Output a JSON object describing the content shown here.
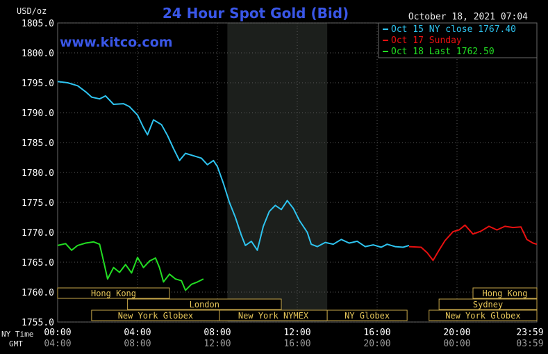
{
  "chart_data": {
    "type": "line",
    "title": "24 Hour Spot Gold (Bid)",
    "ylabel": "USD/oz",
    "website": "www.kitco.com",
    "timestamp": "October 18, 2021 07:04",
    "ylim": [
      1755,
      1805
    ],
    "y_ticks": [
      "1805.0",
      "1800.0",
      "1795.0",
      "1790.0",
      "1785.0",
      "1780.0",
      "1775.0",
      "1770.0",
      "1765.0",
      "1760.0",
      "1755.0"
    ],
    "x_row_label_ny": "NY Time",
    "x_row_label_gmt": "GMT",
    "x_ticks_ny": [
      "00:00",
      "04:00",
      "08:00",
      "12:00",
      "16:00",
      "20:00",
      "23:59"
    ],
    "x_ticks_gmt": [
      "04:00",
      "08:00",
      "12:00",
      "16:00",
      "20:00",
      "00:00",
      "03:59"
    ],
    "legend": [
      {
        "label": "Oct 15 NY close 1767.40",
        "color": "#2ec4f0"
      },
      {
        "label": "Oct 17 Sunday",
        "color": "#e81010"
      },
      {
        "label": "Oct 18 Last 1762.50",
        "color": "#22dd22"
      }
    ],
    "shaded_region": {
      "from_hour": 8.5,
      "to_hour": 13.5
    },
    "sessions": [
      {
        "label": "Hong Kong",
        "start": 0,
        "end": 5.6,
        "row": 0
      },
      {
        "label": "London",
        "start": 3.5,
        "end": 11.2,
        "row": 1
      },
      {
        "label": "New York Globex",
        "start": 1.7,
        "end": 8.1,
        "row": 2
      },
      {
        "label": "New York NYMEX",
        "start": 8.1,
        "end": 13.5,
        "row": 2
      },
      {
        "label": "NY Globex",
        "start": 13.5,
        "end": 17.5,
        "row": 2
      },
      {
        "label": "Hong Kong",
        "start": 20.8,
        "end": 24,
        "row": 0
      },
      {
        "label": "Sydney",
        "start": 19.1,
        "end": 24,
        "row": 1
      },
      {
        "label": "New York Globex",
        "start": 18.6,
        "end": 24,
        "row": 2
      }
    ],
    "series": [
      {
        "name": "Oct 15 NY close 1767.40",
        "color": "#2ec4f0",
        "points": [
          [
            0,
            1795.2
          ],
          [
            0.5,
            1795.0
          ],
          [
            1,
            1794.5
          ],
          [
            1.4,
            1793.5
          ],
          [
            1.7,
            1792.6
          ],
          [
            2.1,
            1792.3
          ],
          [
            2.4,
            1792.8
          ],
          [
            2.8,
            1791.4
          ],
          [
            3.3,
            1791.5
          ],
          [
            3.6,
            1791.0
          ],
          [
            4.0,
            1789.6
          ],
          [
            4.3,
            1787.5
          ],
          [
            4.5,
            1786.3
          ],
          [
            4.8,
            1788.8
          ],
          [
            5.2,
            1788.0
          ],
          [
            5.5,
            1786.2
          ],
          [
            5.8,
            1784.0
          ],
          [
            6.1,
            1782.0
          ],
          [
            6.4,
            1783.2
          ],
          [
            6.8,
            1782.8
          ],
          [
            7.2,
            1782.4
          ],
          [
            7.5,
            1781.3
          ],
          [
            7.8,
            1782.0
          ],
          [
            8.0,
            1781.0
          ],
          [
            8.3,
            1778.2
          ],
          [
            8.6,
            1775.0
          ],
          [
            8.9,
            1772.5
          ],
          [
            9.2,
            1769.5
          ],
          [
            9.4,
            1767.8
          ],
          [
            9.7,
            1768.5
          ],
          [
            10.0,
            1767.0
          ],
          [
            10.3,
            1771.0
          ],
          [
            10.6,
            1773.5
          ],
          [
            10.9,
            1774.5
          ],
          [
            11.2,
            1773.8
          ],
          [
            11.5,
            1775.3
          ],
          [
            11.8,
            1774.0
          ],
          [
            12.1,
            1772.0
          ],
          [
            12.5,
            1770.0
          ],
          [
            12.7,
            1768.0
          ],
          [
            13.0,
            1767.6
          ],
          [
            13.4,
            1768.3
          ],
          [
            13.8,
            1768.0
          ],
          [
            14.2,
            1768.8
          ],
          [
            14.6,
            1768.2
          ],
          [
            15.0,
            1768.5
          ],
          [
            15.4,
            1767.6
          ],
          [
            15.8,
            1767.9
          ],
          [
            16.2,
            1767.5
          ],
          [
            16.5,
            1768.0
          ],
          [
            16.9,
            1767.6
          ],
          [
            17.3,
            1767.5
          ],
          [
            17.6,
            1767.8
          ]
        ]
      },
      {
        "name": "Oct 17 Sunday",
        "color": "#e81010",
        "points": [
          [
            17.6,
            1767.6
          ],
          [
            18.2,
            1767.5
          ],
          [
            18.5,
            1766.6
          ],
          [
            18.8,
            1765.3
          ],
          [
            19.1,
            1767.0
          ],
          [
            19.4,
            1768.6
          ],
          [
            19.8,
            1770.1
          ],
          [
            20.1,
            1770.4
          ],
          [
            20.4,
            1771.2
          ],
          [
            20.8,
            1769.7
          ],
          [
            21.2,
            1770.2
          ],
          [
            21.6,
            1771.0
          ],
          [
            22.0,
            1770.4
          ],
          [
            22.4,
            1771.0
          ],
          [
            22.8,
            1770.8
          ],
          [
            23.2,
            1770.9
          ],
          [
            23.5,
            1768.8
          ],
          [
            23.8,
            1768.2
          ],
          [
            24.0,
            1768.0
          ]
        ]
      },
      {
        "name": "Oct 18 Last 1762.50",
        "color": "#22dd22",
        "points": [
          [
            0,
            1767.8
          ],
          [
            0.4,
            1768.1
          ],
          [
            0.7,
            1767.0
          ],
          [
            1.0,
            1767.8
          ],
          [
            1.4,
            1768.2
          ],
          [
            1.8,
            1768.4
          ],
          [
            2.1,
            1768.0
          ],
          [
            2.3,
            1765.2
          ],
          [
            2.5,
            1762.2
          ],
          [
            2.8,
            1764.1
          ],
          [
            3.1,
            1763.3
          ],
          [
            3.4,
            1764.6
          ],
          [
            3.7,
            1763.2
          ],
          [
            4.0,
            1765.8
          ],
          [
            4.3,
            1764.1
          ],
          [
            4.6,
            1765.2
          ],
          [
            4.9,
            1765.7
          ],
          [
            5.1,
            1764.1
          ],
          [
            5.3,
            1761.7
          ],
          [
            5.6,
            1763.0
          ],
          [
            5.9,
            1762.2
          ],
          [
            6.2,
            1761.9
          ],
          [
            6.4,
            1760.3
          ],
          [
            6.7,
            1761.3
          ],
          [
            7.0,
            1761.7
          ],
          [
            7.3,
            1762.2
          ]
        ]
      }
    ]
  }
}
